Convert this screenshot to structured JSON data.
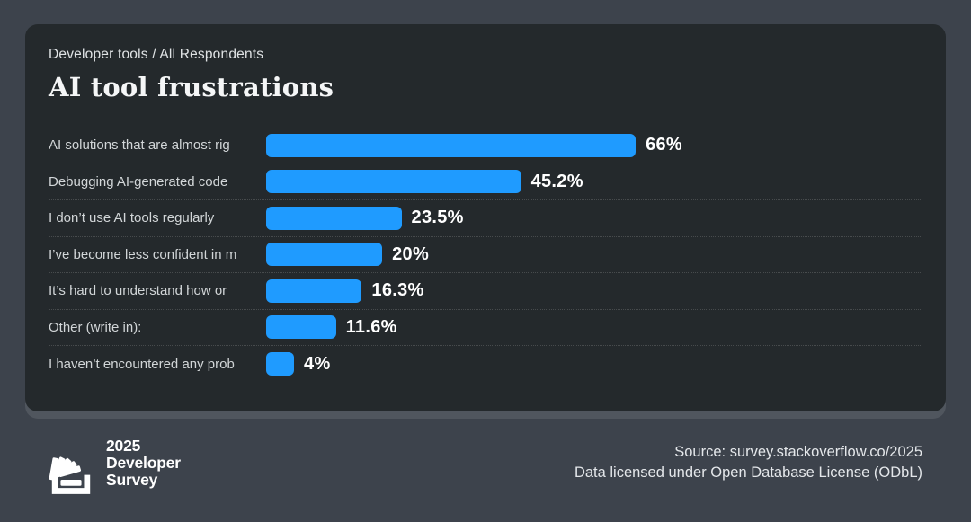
{
  "header": {
    "kicker": "Developer tools / All Respondents",
    "title": "AI tool frustrations"
  },
  "chart_data": {
    "type": "bar",
    "orientation": "horizontal",
    "title": "AI tool frustrations",
    "subtitle": "Developer tools / All Respondents",
    "categories": [
      "AI solutions that are almost rig",
      "Debugging AI-generated code",
      "I don’t use AI tools regularly",
      "I’ve become less confident in m",
      "It’s hard to understand how or",
      "Other (write in):",
      "I haven’t encountered any prob"
    ],
    "values": [
      66,
      45.2,
      23.5,
      20,
      16.3,
      11.6,
      4
    ],
    "value_labels": [
      "66%",
      "45.2%",
      "23.5%",
      "20%",
      "16.3%",
      "11.6%",
      "4%"
    ],
    "xlim": [
      0,
      70
    ],
    "grid": "dotted-row-separators",
    "legend": "none",
    "bar_color": "#1f9bff"
  },
  "footer": {
    "logo": {
      "icon": "stackoverflow-icon",
      "lines": [
        "2025",
        "Developer",
        "Survey"
      ]
    },
    "source_line1": "Source: survey.stackoverflow.co/2025",
    "source_line2": "Data licensed under Open Database License (ODbL)"
  },
  "colors": {
    "page_bg": "#3d434c",
    "card_bg": "#24292c",
    "accent": "#1f9bff",
    "label_text": "#d2d6d8",
    "value_text": "#ffffff"
  }
}
